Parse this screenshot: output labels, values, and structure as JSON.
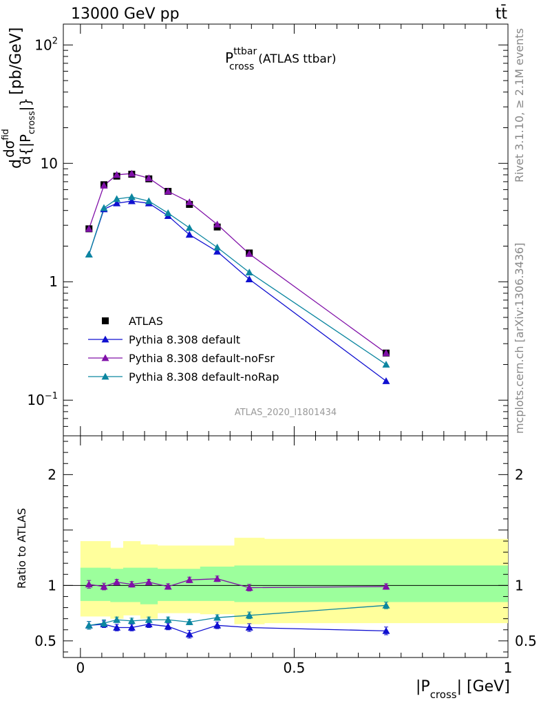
{
  "header": {
    "left": "13000 GeV pp",
    "right": "tt̄"
  },
  "title": {
    "main": "P",
    "sup": "ttbar",
    "sub": "cross",
    "suffix": "(ATLAS ttbar)"
  },
  "ylabel": {
    "prefix": "d",
    "frac_num": "dσ",
    "frac_num_sup": "fid",
    "frac_den": "d{|P",
    "frac_den_sub": "cross",
    "frac_den_end": "|}",
    "unit": "[pb/GeV]"
  },
  "xlabel": {
    "main": "|P",
    "sub": "cross",
    "end": "| [GeV]"
  },
  "ratio_ylabel": "Ratio to ATLAS",
  "analysis_id": "ATLAS_2020_I1801434",
  "side_texts": {
    "rivet": "Rivet 3.1.10, ≥ 2.1M events",
    "mcplots": "mcplots.cern.ch [arXiv:1306.3436]"
  },
  "colors": {
    "atlas": "#000000",
    "default": "#1010d0",
    "noFsr": "#8010a8",
    "noRap": "#0c86a0",
    "band_inner": "#9cff9c",
    "band_outer": "#ffff9c"
  },
  "chart_data": [
    {
      "type": "line",
      "yscale": "log",
      "ylim": [
        0.05,
        150
      ],
      "xlim": [
        -0.04,
        1.0
      ],
      "yticks": [
        {
          "v": 100,
          "base": "10",
          "exp": "2"
        },
        {
          "v": 10,
          "base": "10",
          "exp": ""
        },
        {
          "v": 1,
          "base": "1",
          "exp": ""
        },
        {
          "v": 0.1,
          "base": "10",
          "exp": "−1"
        }
      ],
      "x": [
        0.02,
        0.055,
        0.085,
        0.12,
        0.16,
        0.205,
        0.255,
        0.32,
        0.395,
        0.715
      ],
      "series": [
        {
          "name": "ATLAS",
          "values": [
            2.8,
            6.6,
            7.8,
            8.1,
            7.4,
            5.8,
            4.5,
            2.9,
            1.75,
            0.25
          ]
        },
        {
          "name": "Pythia 8.308 default",
          "values": [
            1.7,
            4.1,
            4.6,
            4.8,
            4.6,
            3.6,
            2.5,
            1.8,
            1.05,
            0.145
          ]
        },
        {
          "name": "Pythia 8.308 default-noFsr",
          "values": [
            2.8,
            6.5,
            8.0,
            8.2,
            7.5,
            5.8,
            4.7,
            3.05,
            1.72,
            0.25
          ]
        },
        {
          "name": "Pythia 8.308 default-noRap",
          "values": [
            1.7,
            4.2,
            5.0,
            5.2,
            4.8,
            3.8,
            2.85,
            1.95,
            1.2,
            0.2
          ]
        }
      ]
    },
    {
      "type": "line",
      "ylim": [
        0.35,
        2.35
      ],
      "yticks": [
        {
          "v": 2,
          "label": "2"
        },
        {
          "v": 1,
          "label": "1"
        },
        {
          "v": 0.5,
          "label": "0.5"
        }
      ],
      "xticks": [
        {
          "v": 0,
          "label": "0"
        },
        {
          "v": 0.5,
          "label": "0.5"
        },
        {
          "v": 1,
          "label": "1"
        }
      ],
      "bins": [
        0,
        0.04,
        0.07,
        0.1,
        0.14,
        0.18,
        0.23,
        0.28,
        0.36,
        0.43,
        1.0
      ],
      "band_inner": [
        [
          0.86,
          1.16
        ],
        [
          0.86,
          1.16
        ],
        [
          0.85,
          1.15
        ],
        [
          0.85,
          1.16
        ],
        [
          0.83,
          1.16
        ],
        [
          0.86,
          1.15
        ],
        [
          0.86,
          1.15
        ],
        [
          0.86,
          1.17
        ],
        [
          0.85,
          1.18
        ],
        [
          0.85,
          1.18
        ]
      ],
      "band_outer": [
        [
          0.72,
          1.4
        ],
        [
          0.72,
          1.4
        ],
        [
          0.7,
          1.34
        ],
        [
          0.73,
          1.4
        ],
        [
          0.7,
          1.37
        ],
        [
          0.75,
          1.36
        ],
        [
          0.75,
          1.36
        ],
        [
          0.74,
          1.36
        ],
        [
          0.65,
          1.43
        ],
        [
          0.66,
          1.42
        ]
      ],
      "x": [
        0.02,
        0.055,
        0.085,
        0.12,
        0.16,
        0.205,
        0.255,
        0.32,
        0.395,
        0.715
      ],
      "series": [
        {
          "name": "Pythia 8.308 default",
          "values": [
            0.64,
            0.65,
            0.62,
            0.62,
            0.65,
            0.63,
            0.56,
            0.64,
            0.62,
            0.59
          ],
          "err": [
            0.035,
            0.03,
            0.03,
            0.03,
            0.03,
            0.03,
            0.035,
            0.03,
            0.035,
            0.035
          ]
        },
        {
          "name": "Pythia 8.308 default-noFsr",
          "values": [
            1.01,
            0.99,
            1.03,
            1.01,
            1.03,
            0.99,
            1.05,
            1.06,
            0.98,
            0.99
          ],
          "err": [
            0.035,
            0.03,
            0.025,
            0.025,
            0.025,
            0.025,
            0.025,
            0.025,
            0.03,
            0.025
          ]
        },
        {
          "name": "Pythia 8.308 default-noRap",
          "values": [
            0.64,
            0.66,
            0.69,
            0.68,
            0.69,
            0.69,
            0.67,
            0.71,
            0.73,
            0.82
          ],
          "err": [
            0.035,
            0.03,
            0.025,
            0.025,
            0.025,
            0.025,
            0.025,
            0.025,
            0.03,
            0.03
          ]
        }
      ]
    }
  ]
}
